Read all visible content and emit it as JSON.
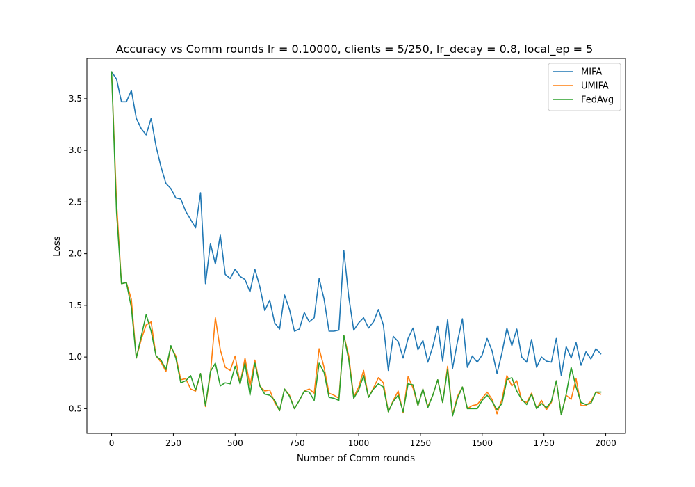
{
  "chart_data": {
    "type": "line",
    "title": "Accuracy vs Comm rounds lr = 0.10000, clients = 5/250, lr_decay = 0.8, local_ep = 5",
    "xlabel": "Number of Comm rounds",
    "ylabel": "Loss",
    "xlim": [
      -100,
      2080
    ],
    "ylim": [
      0.26,
      3.89
    ],
    "xticks": [
      0,
      250,
      500,
      750,
      1000,
      1250,
      1500,
      1750,
      2000
    ],
    "xtick_labels": [
      "0",
      "250",
      "500",
      "750",
      "1000",
      "1250",
      "1500",
      "1750",
      "2000"
    ],
    "yticks": [
      0.5,
      1.0,
      1.5,
      2.0,
      2.5,
      3.0,
      3.5
    ],
    "ytick_labels": [
      "0.5",
      "1.0",
      "1.5",
      "2.0",
      "2.5",
      "3.0",
      "3.5"
    ],
    "grid": false,
    "legend_position": "top-right",
    "x": [
      0,
      20,
      40,
      60,
      80,
      100,
      120,
      140,
      160,
      180,
      200,
      220,
      240,
      260,
      280,
      300,
      320,
      340,
      360,
      380,
      400,
      420,
      440,
      460,
      480,
      500,
      520,
      540,
      560,
      580,
      600,
      620,
      640,
      660,
      680,
      700,
      720,
      740,
      760,
      780,
      800,
      820,
      840,
      860,
      880,
      900,
      920,
      940,
      960,
      980,
      1000,
      1020,
      1040,
      1060,
      1080,
      1100,
      1120,
      1140,
      1160,
      1180,
      1200,
      1220,
      1240,
      1260,
      1280,
      1300,
      1320,
      1340,
      1360,
      1380,
      1400,
      1420,
      1440,
      1460,
      1480,
      1500,
      1520,
      1540,
      1560,
      1580,
      1600,
      1620,
      1640,
      1660,
      1680,
      1700,
      1720,
      1740,
      1760,
      1780,
      1800,
      1820,
      1840,
      1860,
      1880,
      1900,
      1920,
      1940,
      1960,
      1980
    ],
    "series": [
      {
        "name": "MIFA",
        "color": "#1f77b4",
        "values": [
          3.76,
          3.69,
          3.47,
          3.47,
          3.58,
          3.31,
          3.21,
          3.15,
          3.31,
          3.04,
          2.84,
          2.68,
          2.63,
          2.54,
          2.53,
          2.41,
          2.33,
          2.25,
          2.59,
          1.71,
          2.1,
          1.9,
          2.18,
          1.8,
          1.76,
          1.85,
          1.78,
          1.75,
          1.63,
          1.85,
          1.68,
          1.45,
          1.55,
          1.33,
          1.27,
          1.6,
          1.46,
          1.25,
          1.27,
          1.43,
          1.34,
          1.38,
          1.76,
          1.56,
          1.25,
          1.25,
          1.26,
          2.03,
          1.58,
          1.26,
          1.33,
          1.38,
          1.28,
          1.34,
          1.46,
          1.31,
          0.87,
          1.2,
          1.15,
          0.99,
          1.18,
          1.28,
          1.07,
          1.16,
          0.95,
          1.1,
          1.3,
          0.96,
          1.36,
          0.89,
          1.15,
          1.37,
          0.9,
          1.01,
          0.95,
          1.02,
          1.18,
          1.06,
          0.84,
          1.04,
          1.28,
          1.11,
          1.27,
          1.0,
          0.95,
          1.17,
          0.9,
          1.0,
          0.96,
          0.95,
          1.18,
          0.82,
          1.1,
          0.99,
          1.14,
          0.92,
          1.05,
          0.98,
          1.08,
          1.03
        ]
      },
      {
        "name": "UMIFA",
        "color": "#ff7f0e",
        "values": [
          3.76,
          2.5,
          1.71,
          1.72,
          1.56,
          0.99,
          1.17,
          1.31,
          1.34,
          1.01,
          0.95,
          0.86,
          1.1,
          1.01,
          0.78,
          0.79,
          0.69,
          0.67,
          0.84,
          0.52,
          0.84,
          1.38,
          1.07,
          0.9,
          0.87,
          1.01,
          0.74,
          0.99,
          0.72,
          0.97,
          0.72,
          0.67,
          0.68,
          0.56,
          0.48,
          0.69,
          0.63,
          0.5,
          0.58,
          0.67,
          0.69,
          0.65,
          1.08,
          0.9,
          0.65,
          0.63,
          0.6,
          1.21,
          1.01,
          0.61,
          0.71,
          0.87,
          0.61,
          0.7,
          0.8,
          0.75,
          0.47,
          0.58,
          0.67,
          0.46,
          0.81,
          0.7,
          0.53,
          0.69,
          0.52,
          0.63,
          0.78,
          0.56,
          0.91,
          0.44,
          0.62,
          0.71,
          0.5,
          0.53,
          0.54,
          0.6,
          0.66,
          0.59,
          0.45,
          0.59,
          0.82,
          0.72,
          0.77,
          0.58,
          0.56,
          0.65,
          0.5,
          0.58,
          0.49,
          0.56,
          0.77,
          0.44,
          0.63,
          0.59,
          0.79,
          0.53,
          0.53,
          0.57,
          0.66,
          0.64
        ]
      },
      {
        "name": "FedAvg",
        "color": "#2ca02c",
        "values": [
          3.76,
          2.4,
          1.71,
          1.72,
          1.48,
          0.99,
          1.2,
          1.41,
          1.25,
          1.01,
          0.97,
          0.88,
          1.11,
          0.99,
          0.75,
          0.77,
          0.82,
          0.68,
          0.84,
          0.53,
          0.86,
          0.94,
          0.72,
          0.75,
          0.74,
          0.91,
          0.74,
          0.94,
          0.63,
          0.94,
          0.72,
          0.64,
          0.63,
          0.58,
          0.48,
          0.69,
          0.62,
          0.5,
          0.58,
          0.67,
          0.66,
          0.58,
          0.94,
          0.85,
          0.61,
          0.6,
          0.58,
          1.21,
          0.97,
          0.6,
          0.68,
          0.82,
          0.61,
          0.69,
          0.74,
          0.71,
          0.47,
          0.57,
          0.63,
          0.47,
          0.74,
          0.73,
          0.53,
          0.69,
          0.51,
          0.63,
          0.78,
          0.56,
          0.88,
          0.43,
          0.6,
          0.71,
          0.5,
          0.5,
          0.5,
          0.58,
          0.63,
          0.57,
          0.49,
          0.55,
          0.78,
          0.8,
          0.67,
          0.59,
          0.54,
          0.64,
          0.5,
          0.55,
          0.51,
          0.57,
          0.77,
          0.44,
          0.64,
          0.9,
          0.71,
          0.56,
          0.54,
          0.55,
          0.66,
          0.66
        ]
      }
    ]
  }
}
